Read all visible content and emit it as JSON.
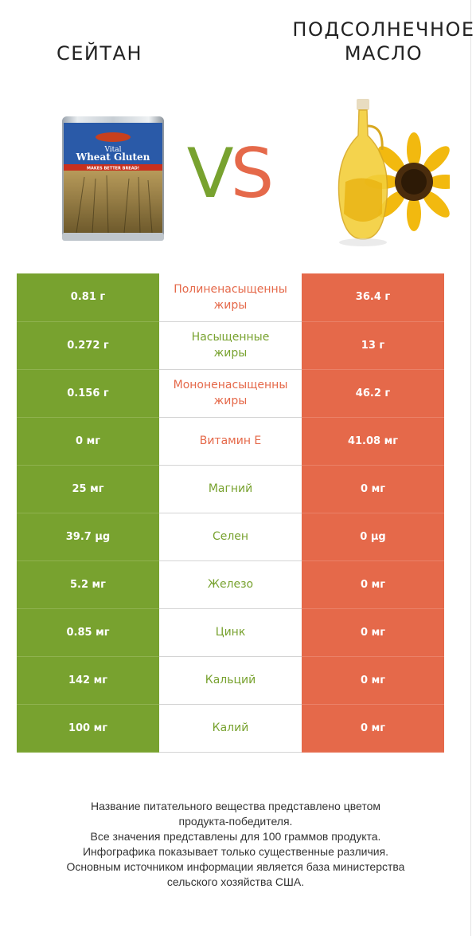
{
  "left_product": {
    "name": "СЕЙТАН",
    "can_text": {
      "brand": "Wheat Gluten",
      "sub": "Vital",
      "tag": "MAKES BETTER BREAD!"
    }
  },
  "right_product": {
    "name": "ПОДСОЛНЕЧНОЕ\nМАСЛО"
  },
  "vs": {
    "v": "V",
    "s": "S"
  },
  "colors": {
    "left": "#78a22f",
    "right": "#e5694a"
  },
  "rows": [
    {
      "left": "0.81 г",
      "label_1": "Полиненасыщенны",
      "label_2": "жиры",
      "right": "36.4 г",
      "winner": "right"
    },
    {
      "left": "0.272 г",
      "label_1": "Насыщенные",
      "label_2": "жиры",
      "right": "13 г",
      "winner": "left"
    },
    {
      "left": "0.156 г",
      "label_1": "Мононенасыщенны",
      "label_2": "жиры",
      "right": "46.2 г",
      "winner": "right"
    },
    {
      "left": "0 мг",
      "label_1": "Витамин E",
      "label_2": "",
      "right": "41.08 мг",
      "winner": "right"
    },
    {
      "left": "25 мг",
      "label_1": "Магний",
      "label_2": "",
      "right": "0 мг",
      "winner": "left"
    },
    {
      "left": "39.7 µg",
      "label_1": "Селен",
      "label_2": "",
      "right": "0 µg",
      "winner": "left"
    },
    {
      "left": "5.2 мг",
      "label_1": "Железо",
      "label_2": "",
      "right": "0 мг",
      "winner": "left"
    },
    {
      "left": "0.85 мг",
      "label_1": "Цинк",
      "label_2": "",
      "right": "0 мг",
      "winner": "left"
    },
    {
      "left": "142 мг",
      "label_1": "Кальций",
      "label_2": "",
      "right": "0 мг",
      "winner": "left"
    },
    {
      "left": "100 мг",
      "label_1": "Калий",
      "label_2": "",
      "right": "0 мг",
      "winner": "left"
    }
  ],
  "footer": {
    "line1": "Название питательного вещества представлено цветом",
    "line2": "продукта-победителя.",
    "line3": "Все значения представлены для 100 граммов продукта.",
    "line4": "Инфографика показывает только существенные различия.",
    "line5": "Основным источником информации является база министерства",
    "line6": "сельского хозяйства США."
  }
}
